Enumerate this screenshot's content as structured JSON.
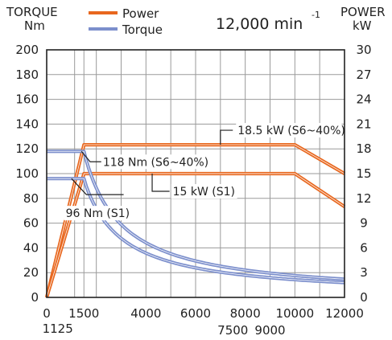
{
  "chart_data": {
    "type": "line",
    "speed_value": "12,000 min",
    "speed_unit_exp": "-1",
    "left_axis": {
      "title_line1": "TORQUE",
      "title_line2": "Nm",
      "ylim": [
        0,
        200
      ],
      "ticks": [
        "0",
        "20",
        "40",
        "60",
        "80",
        "100",
        "120",
        "140",
        "160",
        "180",
        "200"
      ]
    },
    "right_axis": {
      "title_line1": "POWER",
      "title_line2": "kW",
      "ylim": [
        0,
        30
      ],
      "ticks": [
        "0",
        "3",
        "6",
        "9",
        "12",
        "15",
        "18",
        "21",
        "24",
        "27",
        "30"
      ]
    },
    "x_axis": {
      "xlim": [
        0,
        12000
      ],
      "ticks": [
        0,
        1500,
        4000,
        6000,
        8000,
        10000,
        12000
      ],
      "tick_labels": [
        "0",
        "1500",
        "4000",
        "6000",
        "8000",
        "10000",
        "12000"
      ],
      "extra_labels": [
        {
          "x": 1125,
          "label": "1125"
        },
        {
          "x": 7500,
          "label": "7500"
        },
        {
          "x": 9000,
          "label": "9000"
        }
      ],
      "gridlines": [
        1125,
        1500,
        2000,
        3000,
        4000,
        5000,
        6000,
        7000,
        8000,
        9000,
        10000,
        11000,
        12000
      ]
    },
    "grid": true,
    "legend": {
      "position": "top-left",
      "entries": [
        {
          "name": "Power",
          "color": "#E8671E"
        },
        {
          "name": "Torque",
          "color": "#7C8FCC"
        }
      ]
    },
    "series": [
      {
        "name": "Power S6~40%",
        "axis": "right",
        "color": "#E8671E",
        "points": [
          [
            0,
            0
          ],
          [
            1500,
            18.5
          ],
          [
            10000,
            18.5
          ],
          [
            12000,
            15
          ]
        ]
      },
      {
        "name": "Power S1",
        "axis": "right",
        "color": "#E8671E",
        "points": [
          [
            0,
            0
          ],
          [
            1500,
            15
          ],
          [
            10000,
            15
          ],
          [
            12000,
            11
          ]
        ]
      },
      {
        "name": "Torque S6~40%",
        "axis": "left",
        "color": "#7C8FCC",
        "const": 118,
        "corner": 1500,
        "power_kw": 18.5,
        "end_x": 12000,
        "start_x": 0
      },
      {
        "name": "Torque S1",
        "axis": "left",
        "color": "#7C8FCC",
        "const": 96,
        "corner": 1500,
        "power_kw": 15,
        "end_x": 12000,
        "start_x": 0
      }
    ],
    "annotations": [
      {
        "text": "18.5 kW (S6~40%)",
        "series": "Power S6~40%"
      },
      {
        "text": "118 Nm (S6~40%)",
        "series": "Torque S6~40%"
      },
      {
        "text": "15 kW (S1)",
        "series": "Power S1"
      },
      {
        "text": "96 Nm (S1)",
        "series": "Torque S1"
      }
    ]
  }
}
